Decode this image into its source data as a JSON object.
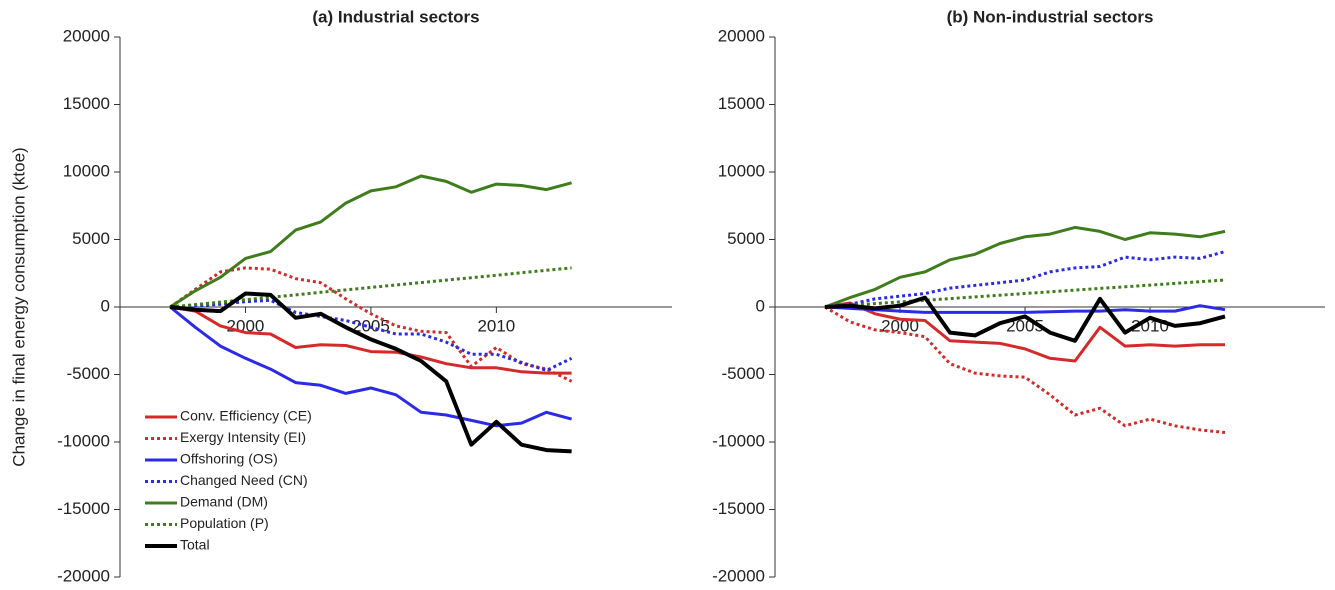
{
  "chart_data": [
    {
      "type": "line",
      "title": "(a) Industrial sectors",
      "ylabel": "Change in final energy consumption (ktoe)",
      "x": [
        1997,
        1998,
        1999,
        2000,
        2001,
        2002,
        2003,
        2004,
        2005,
        2006,
        2007,
        2008,
        2009,
        2010,
        2011,
        2012,
        2013
      ],
      "xlim": [
        1995,
        2017
      ],
      "xticks": [
        2000,
        2005,
        2010
      ],
      "ylim": [
        -20000,
        20000
      ],
      "yticks": [
        -20000,
        -15000,
        -10000,
        -5000,
        0,
        5000,
        10000,
        15000,
        20000
      ],
      "legend": "lower left",
      "series": [
        {
          "name": "Conv. Efficiency (CE)",
          "color": "#d42a2a",
          "style": "solid",
          "linewidth": 3,
          "values": [
            0,
            -300,
            -1400,
            -1900,
            -2000,
            -3000,
            -2800,
            -2850,
            -3300,
            -3350,
            -3700,
            -4200,
            -4500,
            -4500,
            -4800,
            -4900,
            -4900
          ]
        },
        {
          "name": "Exergy Intensity (EI)",
          "color": "#d42a2a",
          "style": "dotted",
          "linewidth": 3,
          "values": [
            0,
            1300,
            2600,
            2900,
            2800,
            2100,
            1800,
            600,
            -500,
            -1400,
            -1800,
            -1900,
            -4400,
            -3000,
            -4200,
            -4600,
            -5500
          ]
        },
        {
          "name": "Offshoring (OS)",
          "color": "#2a2ae8",
          "style": "solid",
          "linewidth": 3,
          "values": [
            0,
            -1500,
            -2900,
            -3800,
            -4600,
            -5600,
            -5800,
            -6400,
            -6000,
            -6500,
            -7800,
            -8000,
            -8400,
            -8800,
            -8600,
            -7800,
            -8300
          ]
        },
        {
          "name": "Changed Need (CN)",
          "color": "#2a2ae8",
          "style": "dotted",
          "linewidth": 3,
          "values": [
            0,
            100,
            200,
            400,
            500,
            -400,
            -700,
            -1000,
            -1500,
            -2000,
            -2000,
            -2600,
            -3500,
            -3500,
            -4100,
            -4700,
            -3800
          ]
        },
        {
          "name": "Demand (DM)",
          "color": "#3f7d1c",
          "style": "solid",
          "linewidth": 3,
          "values": [
            0,
            1200,
            2200,
            3600,
            4100,
            5700,
            6300,
            7700,
            8600,
            8900,
            9700,
            9300,
            8500,
            9100,
            9000,
            8700,
            9200
          ]
        },
        {
          "name": "Population (P)",
          "color": "#3f7d1c",
          "style": "dotted",
          "linewidth": 3,
          "values": [
            0,
            180,
            360,
            540,
            720,
            900,
            1090,
            1270,
            1450,
            1630,
            1810,
            1990,
            2170,
            2350,
            2540,
            2720,
            2900
          ]
        },
        {
          "name": "Total",
          "color": "#000000",
          "style": "solid",
          "linewidth": 4,
          "values": [
            0,
            -200,
            -300,
            1000,
            900,
            -800,
            -500,
            -1500,
            -2400,
            -3100,
            -4000,
            -5500,
            -10200,
            -8500,
            -10200,
            -10600,
            -10700
          ]
        }
      ]
    },
    {
      "type": "line",
      "title": "(b) Non-industrial sectors",
      "x": [
        1997,
        1998,
        1999,
        2000,
        2001,
        2002,
        2003,
        2004,
        2005,
        2006,
        2007,
        2008,
        2009,
        2010,
        2011,
        2012,
        2013
      ],
      "xlim": [
        1995,
        2017
      ],
      "xticks": [
        2000,
        2005,
        2010
      ],
      "ylim": [
        -20000,
        20000
      ],
      "yticks": [
        -20000,
        -15000,
        -10000,
        -5000,
        0,
        5000,
        10000,
        15000,
        20000
      ],
      "series": [
        {
          "color": "#d42a2a",
          "style": "solid",
          "linewidth": 3,
          "values": [
            0,
            300,
            -500,
            -900,
            -1000,
            -2500,
            -2600,
            -2700,
            -3100,
            -3800,
            -4000,
            -1500,
            -2900,
            -2800,
            -2900,
            -2800,
            -2800
          ]
        },
        {
          "color": "#d42a2a",
          "style": "dotted",
          "linewidth": 3,
          "values": [
            0,
            -1100,
            -1700,
            -1900,
            -2200,
            -4200,
            -4900,
            -5100,
            -5200,
            -6500,
            -8000,
            -7500,
            -8800,
            -8300,
            -8800,
            -9100,
            -9300
          ]
        },
        {
          "color": "#2a2ae8",
          "style": "solid",
          "linewidth": 3,
          "values": [
            0,
            -100,
            -200,
            -300,
            -400,
            -400,
            -400,
            -400,
            -400,
            -350,
            -300,
            -300,
            -200,
            -300,
            -300,
            100,
            -200
          ]
        },
        {
          "color": "#2a2ae8",
          "style": "dotted",
          "linewidth": 3,
          "values": [
            0,
            200,
            600,
            800,
            1000,
            1400,
            1600,
            1800,
            2000,
            2600,
            2900,
            3000,
            3700,
            3500,
            3700,
            3600,
            4100
          ]
        },
        {
          "color": "#3f7d1c",
          "style": "solid",
          "linewidth": 3,
          "values": [
            0,
            700,
            1300,
            2200,
            2600,
            3500,
            3900,
            4700,
            5200,
            5400,
            5900,
            5600,
            5000,
            5500,
            5400,
            5200,
            5600
          ]
        },
        {
          "color": "#3f7d1c",
          "style": "dotted",
          "linewidth": 3,
          "values": [
            0,
            125,
            250,
            375,
            500,
            625,
            750,
            875,
            1000,
            1125,
            1250,
            1375,
            1500,
            1625,
            1750,
            1875,
            2000
          ]
        },
        {
          "color": "#000000",
          "style": "solid",
          "linewidth": 4,
          "values": [
            0,
            100,
            -100,
            100,
            700,
            -1900,
            -2100,
            -1200,
            -700,
            -1900,
            -2500,
            600,
            -1900,
            -800,
            -1400,
            -1200,
            -700
          ]
        }
      ]
    }
  ]
}
